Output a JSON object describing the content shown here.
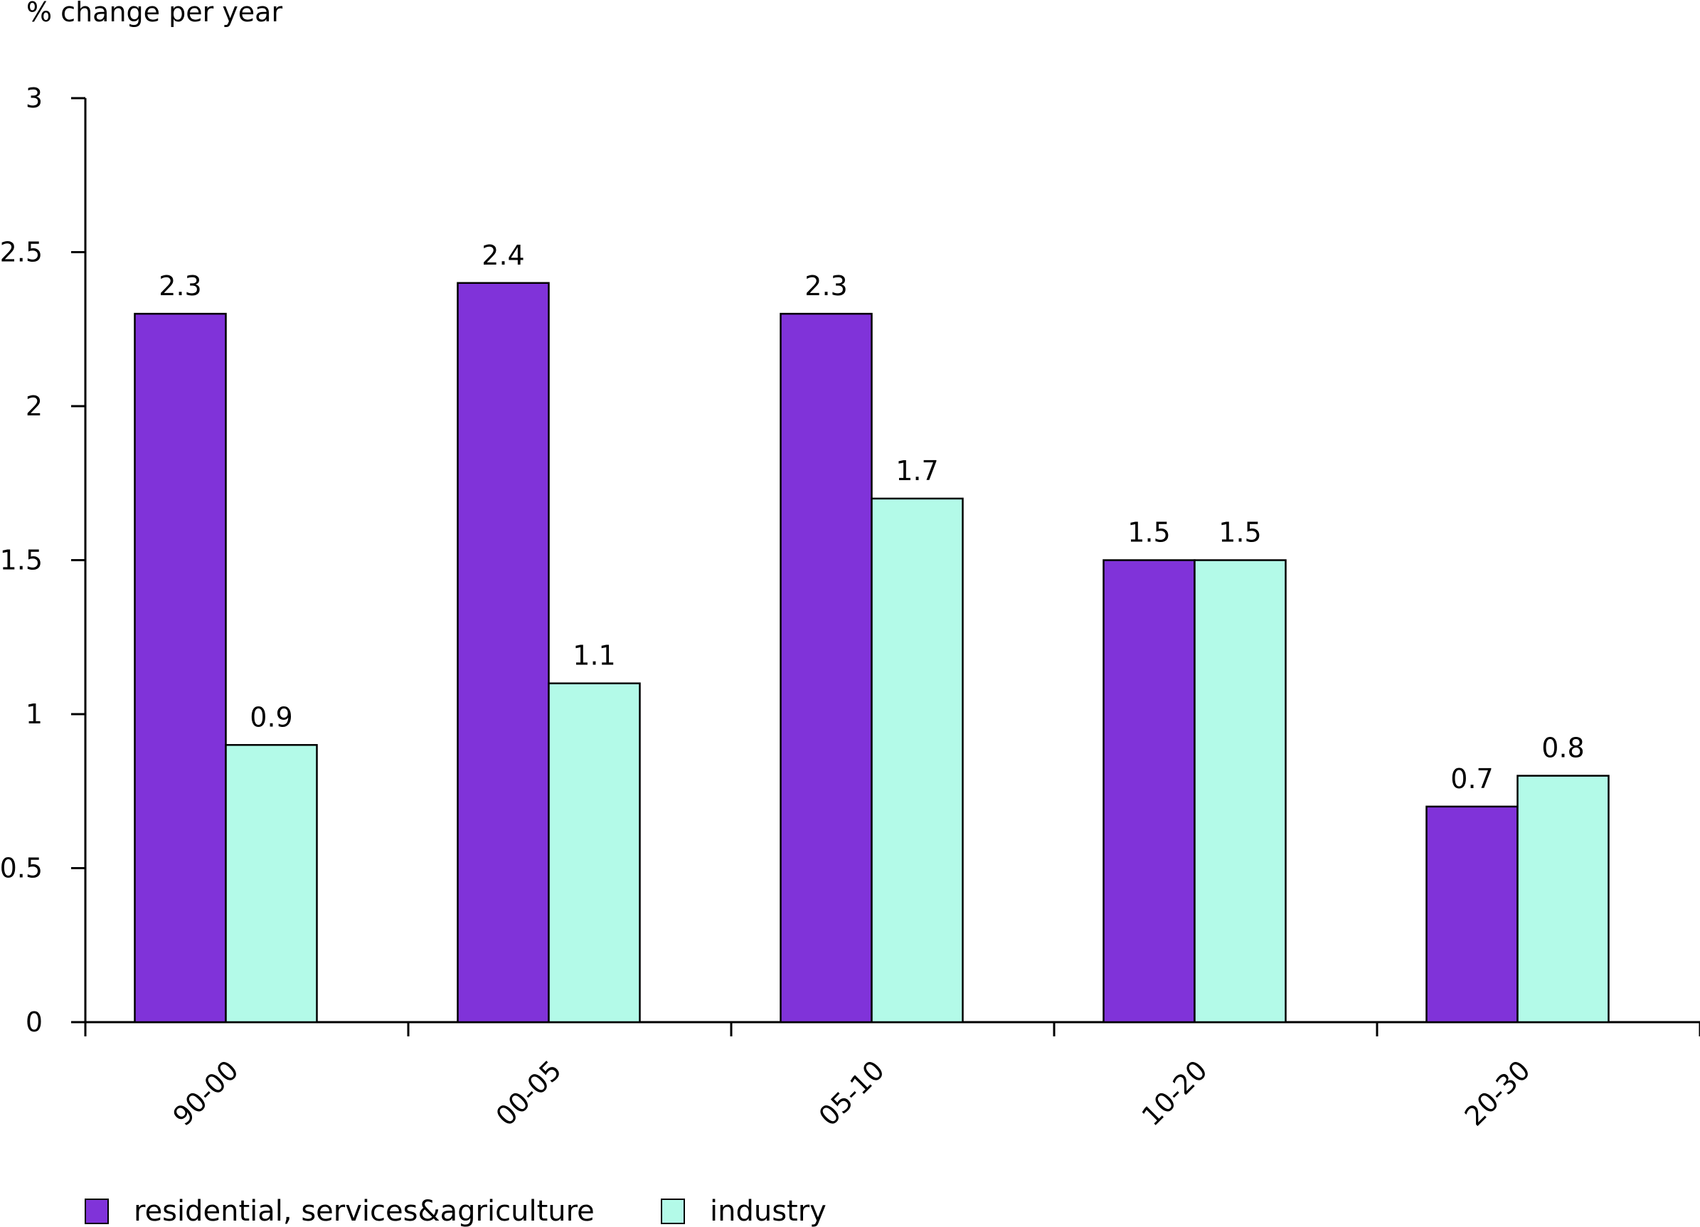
{
  "chart_data": {
    "type": "bar",
    "ylabel": "% change per year",
    "xlabel": "",
    "title": "",
    "categories": [
      "90-00",
      "00-05",
      "05-10",
      "10-20",
      "20-30"
    ],
    "series": [
      {
        "name": "residential, services&agriculture",
        "values": [
          2.3,
          2.4,
          2.3,
          1.5,
          0.7
        ],
        "color": "#8033d9"
      },
      {
        "name": "industry",
        "values": [
          0.9,
          1.1,
          1.7,
          1.5,
          0.8
        ],
        "color": "#b3fae8"
      }
    ],
    "ylim": [
      0,
      3
    ],
    "yticks": [
      0,
      0.5,
      1,
      1.5,
      2,
      2.5,
      3
    ],
    "data_labels": true,
    "grid": false,
    "legend_position": "bottom-left"
  }
}
